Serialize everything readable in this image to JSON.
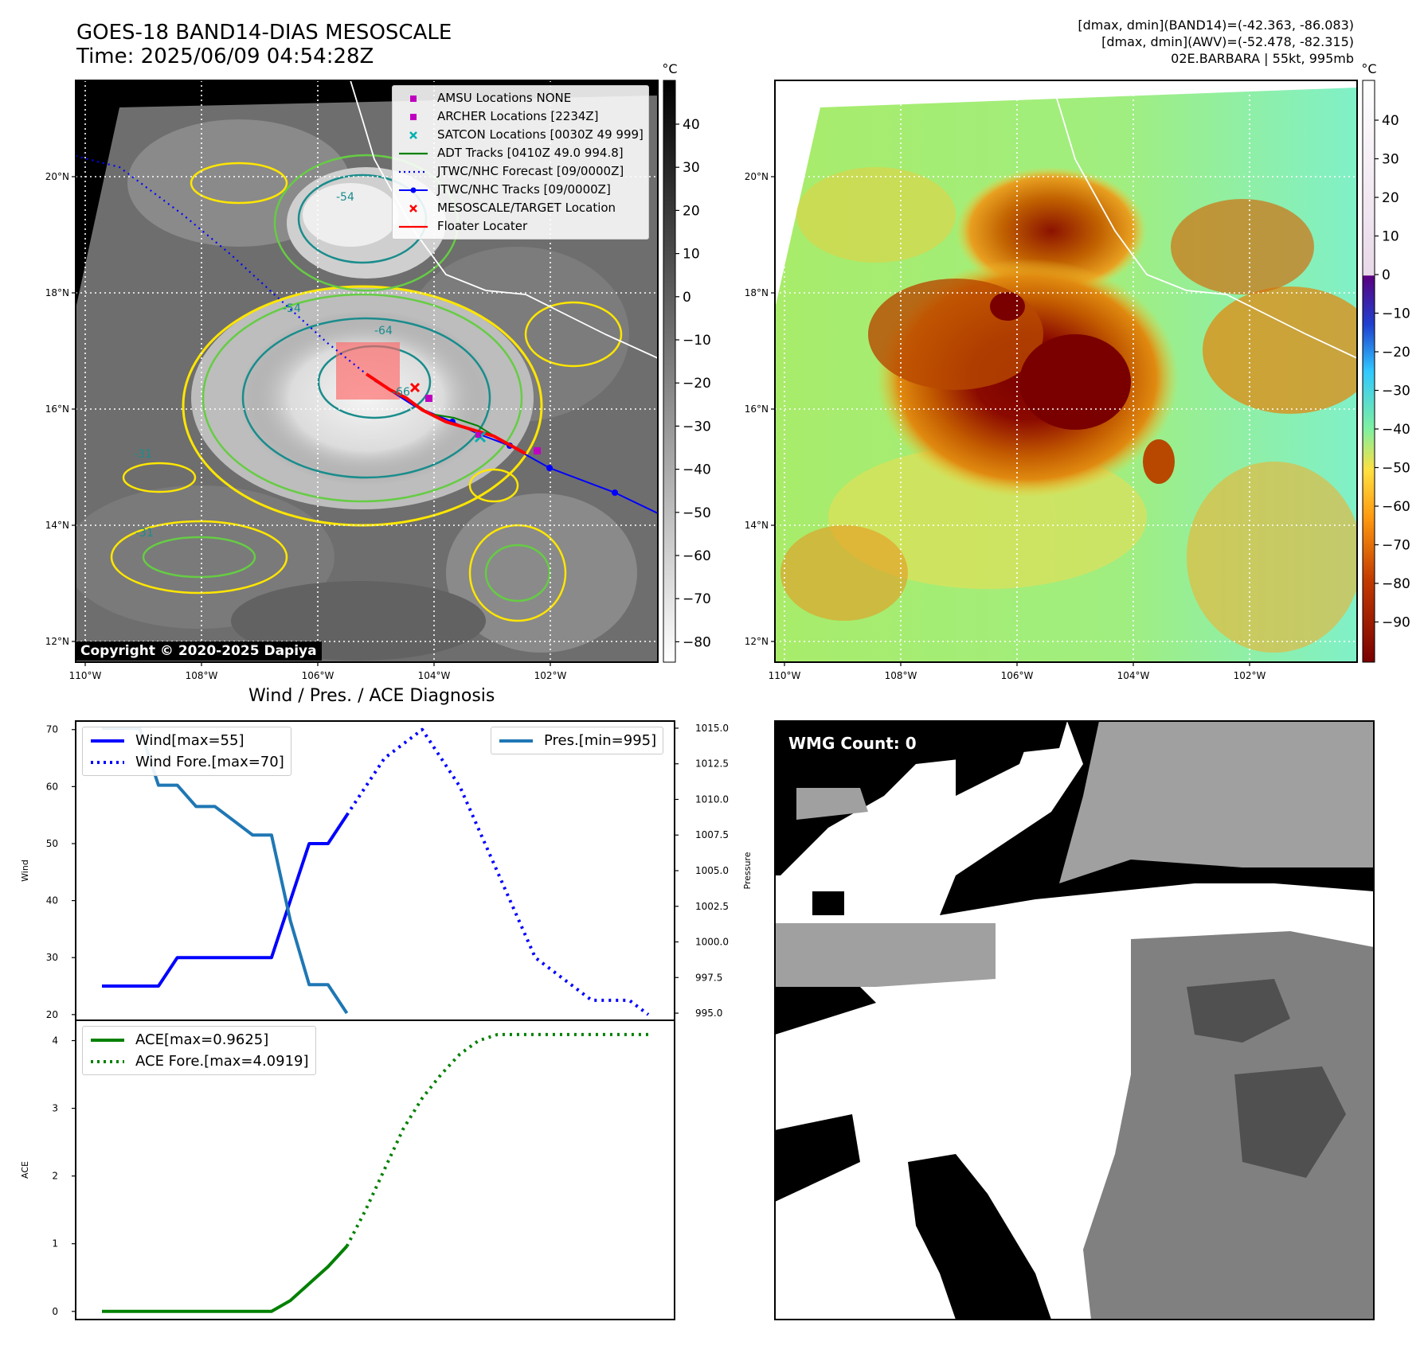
{
  "header": {
    "title_line1": "GOES-18 BAND14-DIAS MESOSCALE",
    "title_line2": "Time: 2025/06/09 04:54:28Z",
    "info_line1": "[dmax, dmin](BAND14)=(-42.363, -86.083)",
    "info_line2": "[dmax, dmin](AWV)=(-52.478, -82.315)",
    "info_line3": "02E.BARBARA | 55kt, 995mb"
  },
  "map_ir": {
    "lat_labels": [
      "20°N",
      "18°N",
      "16°N",
      "14°N",
      "12°N"
    ],
    "lon_labels": [
      "110°W",
      "108°W",
      "106°W",
      "104°W",
      "102°W"
    ],
    "contour_labels": [
      "-54",
      "-54",
      "-64",
      "-66",
      "-31",
      "-31"
    ],
    "copyright": "Copyright © 2020-2025 Dapiya",
    "colorbar_unit": "°C",
    "colorbar_ticks": [
      "40",
      "30",
      "20",
      "10",
      "0",
      "−10",
      "−20",
      "−30",
      "−40",
      "−50",
      "−60",
      "−70",
      "−80"
    ],
    "legend": [
      {
        "label": "AMSU Locations NONE",
        "symbol": "square",
        "color": "#c000c0"
      },
      {
        "label": "ARCHER Locations [2234Z]",
        "symbol": "square",
        "color": "#c000c0"
      },
      {
        "label": "SATCON Locations [0030Z 49 999]",
        "symbol": "x",
        "color": "#00b0b0"
      },
      {
        "label": "ADT Tracks [0410Z 49.0 994.8]",
        "symbol": "line",
        "color": "#008000"
      },
      {
        "label": "JTWC/NHC Forecast [09/0000Z]",
        "symbol": "dotted",
        "color": "#0000ff"
      },
      {
        "label": "JTWC/NHC Tracks [09/0000Z]",
        "symbol": "linedot",
        "color": "#0000ff"
      },
      {
        "label": "MESOSCALE/TARGET Location",
        "symbol": "x",
        "color": "#ff0000"
      },
      {
        "label": "Floater Locater",
        "symbol": "line",
        "color": "#ff0000"
      }
    ]
  },
  "map_awv": {
    "lat_labels": [
      "20°N",
      "18°N",
      "16°N",
      "14°N",
      "12°N"
    ],
    "lon_labels": [
      "110°W",
      "108°W",
      "106°W",
      "104°W",
      "102°W"
    ],
    "colorbar_unit": "°C",
    "colorbar_ticks": [
      "40",
      "30",
      "20",
      "10",
      "0",
      "−10",
      "−20",
      "−30",
      "−40",
      "−50",
      "−60",
      "−70",
      "−80",
      "−90"
    ]
  },
  "wmg": {
    "label": "WMG Count: 0"
  },
  "colors": {
    "wind": "#0000ff",
    "pressure": "#1f77b4",
    "ace": "#008000",
    "track_blue": "#0000ff",
    "floater_red": "#ff0000",
    "contour_yellow": "#ffe600",
    "contour_green": "#66cc44",
    "contour_teal": "#1a8c8c"
  },
  "chart_data": [
    {
      "type": "line",
      "title": "Wind / Pres. / ACE Diagnosis",
      "ylabel": "Wind",
      "ylabel_right": "Pressure",
      "ylim": [
        19,
        71.5
      ],
      "ylim_right": [
        994.5,
        1015.5
      ],
      "yticks": [
        20,
        30,
        40,
        50,
        60,
        70
      ],
      "yticks_right": [
        "995.0",
        "997.5",
        "1000.0",
        "1002.5",
        "1005.0",
        "1007.5",
        "1010.0",
        "1012.5",
        "1015.0"
      ],
      "series": [
        {
          "name": "Wind[max=55]",
          "style": "solid",
          "x": [
            0,
            1,
            2,
            3,
            4,
            5,
            6,
            7,
            8,
            9,
            10,
            11,
            12,
            13
          ],
          "values": [
            25,
            25,
            25,
            25,
            30,
            30,
            30,
            30,
            30,
            30,
            40,
            50,
            50,
            55
          ]
        },
        {
          "name": "Wind Fore.[max=70]",
          "style": "dotted",
          "x": [
            13,
            14,
            15,
            16,
            17,
            18,
            19,
            20,
            21,
            22,
            23,
            24,
            25,
            26,
            27,
            28,
            29
          ],
          "values": [
            55,
            60,
            65,
            67.5,
            70,
            65,
            60,
            52.5,
            45,
            37.5,
            30,
            27.5,
            25,
            22.5,
            22.5,
            22.5,
            20
          ]
        },
        {
          "name": "Pres.[min=995]",
          "axis": "right",
          "style": "solid",
          "x": [
            0,
            1,
            2,
            3,
            4,
            5,
            6,
            7,
            8,
            9,
            10,
            11,
            12,
            13
          ],
          "values": [
            1015,
            1015,
            1015,
            1011,
            1011,
            1009.5,
            1009.5,
            1008.5,
            1007.5,
            1007.5,
            1001.5,
            997,
            997,
            995
          ]
        }
      ]
    },
    {
      "type": "line",
      "ylabel": "ACE",
      "ylim": [
        -0.12,
        4.3
      ],
      "yticks": [
        0,
        1,
        2,
        3,
        4
      ],
      "series": [
        {
          "name": "ACE[max=0.9625]",
          "style": "solid",
          "x": [
            0,
            1,
            2,
            3,
            4,
            5,
            6,
            7,
            8,
            9,
            10,
            11,
            12,
            13
          ],
          "values": [
            0,
            0,
            0,
            0,
            0,
            0,
            0,
            0,
            0,
            0,
            0.16,
            0.41,
            0.66,
            0.9625
          ]
        },
        {
          "name": "ACE Fore.[max=4.0919]",
          "style": "dotted",
          "x": [
            13,
            14,
            15,
            16,
            17,
            18,
            19,
            20,
            21,
            22,
            23,
            24,
            25,
            26,
            27,
            28,
            29
          ],
          "values": [
            0.9625,
            1.5,
            2.1,
            2.7,
            3.15,
            3.5,
            3.8,
            4.0,
            4.09,
            4.09,
            4.09,
            4.09,
            4.09,
            4.09,
            4.09,
            4.09,
            4.09
          ]
        }
      ]
    }
  ]
}
